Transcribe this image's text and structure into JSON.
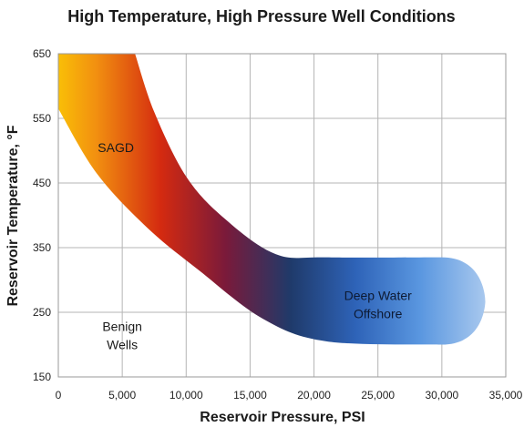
{
  "chart_data": {
    "type": "area",
    "title": "High Temperature, High Pressure Well Conditions",
    "xlabel": "Reservoir Pressure, PSI",
    "ylabel": "Reservoir Temperature, °F",
    "xlim": [
      0,
      35000
    ],
    "ylim": [
      150,
      650
    ],
    "x_ticks": [
      0,
      5000,
      10000,
      15000,
      20000,
      25000,
      30000,
      35000
    ],
    "x_tick_labels": [
      "0",
      "5,000",
      "10,000",
      "15,000",
      "20,000",
      "25,000",
      "30,000",
      "35,000"
    ],
    "y_ticks": [
      150,
      250,
      350,
      450,
      550,
      650
    ],
    "y_tick_labels": [
      "150",
      "250",
      "350",
      "450",
      "550",
      "650"
    ],
    "grid": true,
    "band": {
      "upper_edge": [
        [
          6000,
          650
        ],
        [
          7500,
          560
        ],
        [
          10000,
          460
        ],
        [
          13000,
          395
        ],
        [
          17000,
          340
        ],
        [
          21000,
          335
        ],
        [
          30000,
          335
        ]
      ],
      "lower_edge": [
        [
          0,
          565
        ],
        [
          3000,
          465
        ],
        [
          7000,
          380
        ],
        [
          11000,
          315
        ],
        [
          16000,
          240
        ],
        [
          21000,
          205
        ],
        [
          30000,
          200
        ]
      ],
      "cap_end_pressure": 33400,
      "gradient": [
        "#ffe000",
        "#f29010",
        "#d42a10",
        "#7a1a3a",
        "#1f3a6a",
        "#2e63b8",
        "#5a97e0",
        "#a8c8ee"
      ],
      "colors_that_matter": {
        "hot": "#ffe000",
        "mid": "#d42a10",
        "deep": "#1f3a6a",
        "cool": "#a8c8ee"
      }
    },
    "regions": [
      {
        "label_lines": [
          "SAGD"
        ],
        "x": 4500,
        "y": 505,
        "color": "#1a1a1a"
      },
      {
        "label_lines": [
          "Deep Water",
          "Offshore"
        ],
        "x": 25000,
        "y": 262,
        "color": "#0d1a33"
      },
      {
        "label_lines": [
          "Benign",
          "Wells"
        ],
        "x": 5000,
        "y": 214,
        "color": "#1a1a1a"
      }
    ]
  }
}
